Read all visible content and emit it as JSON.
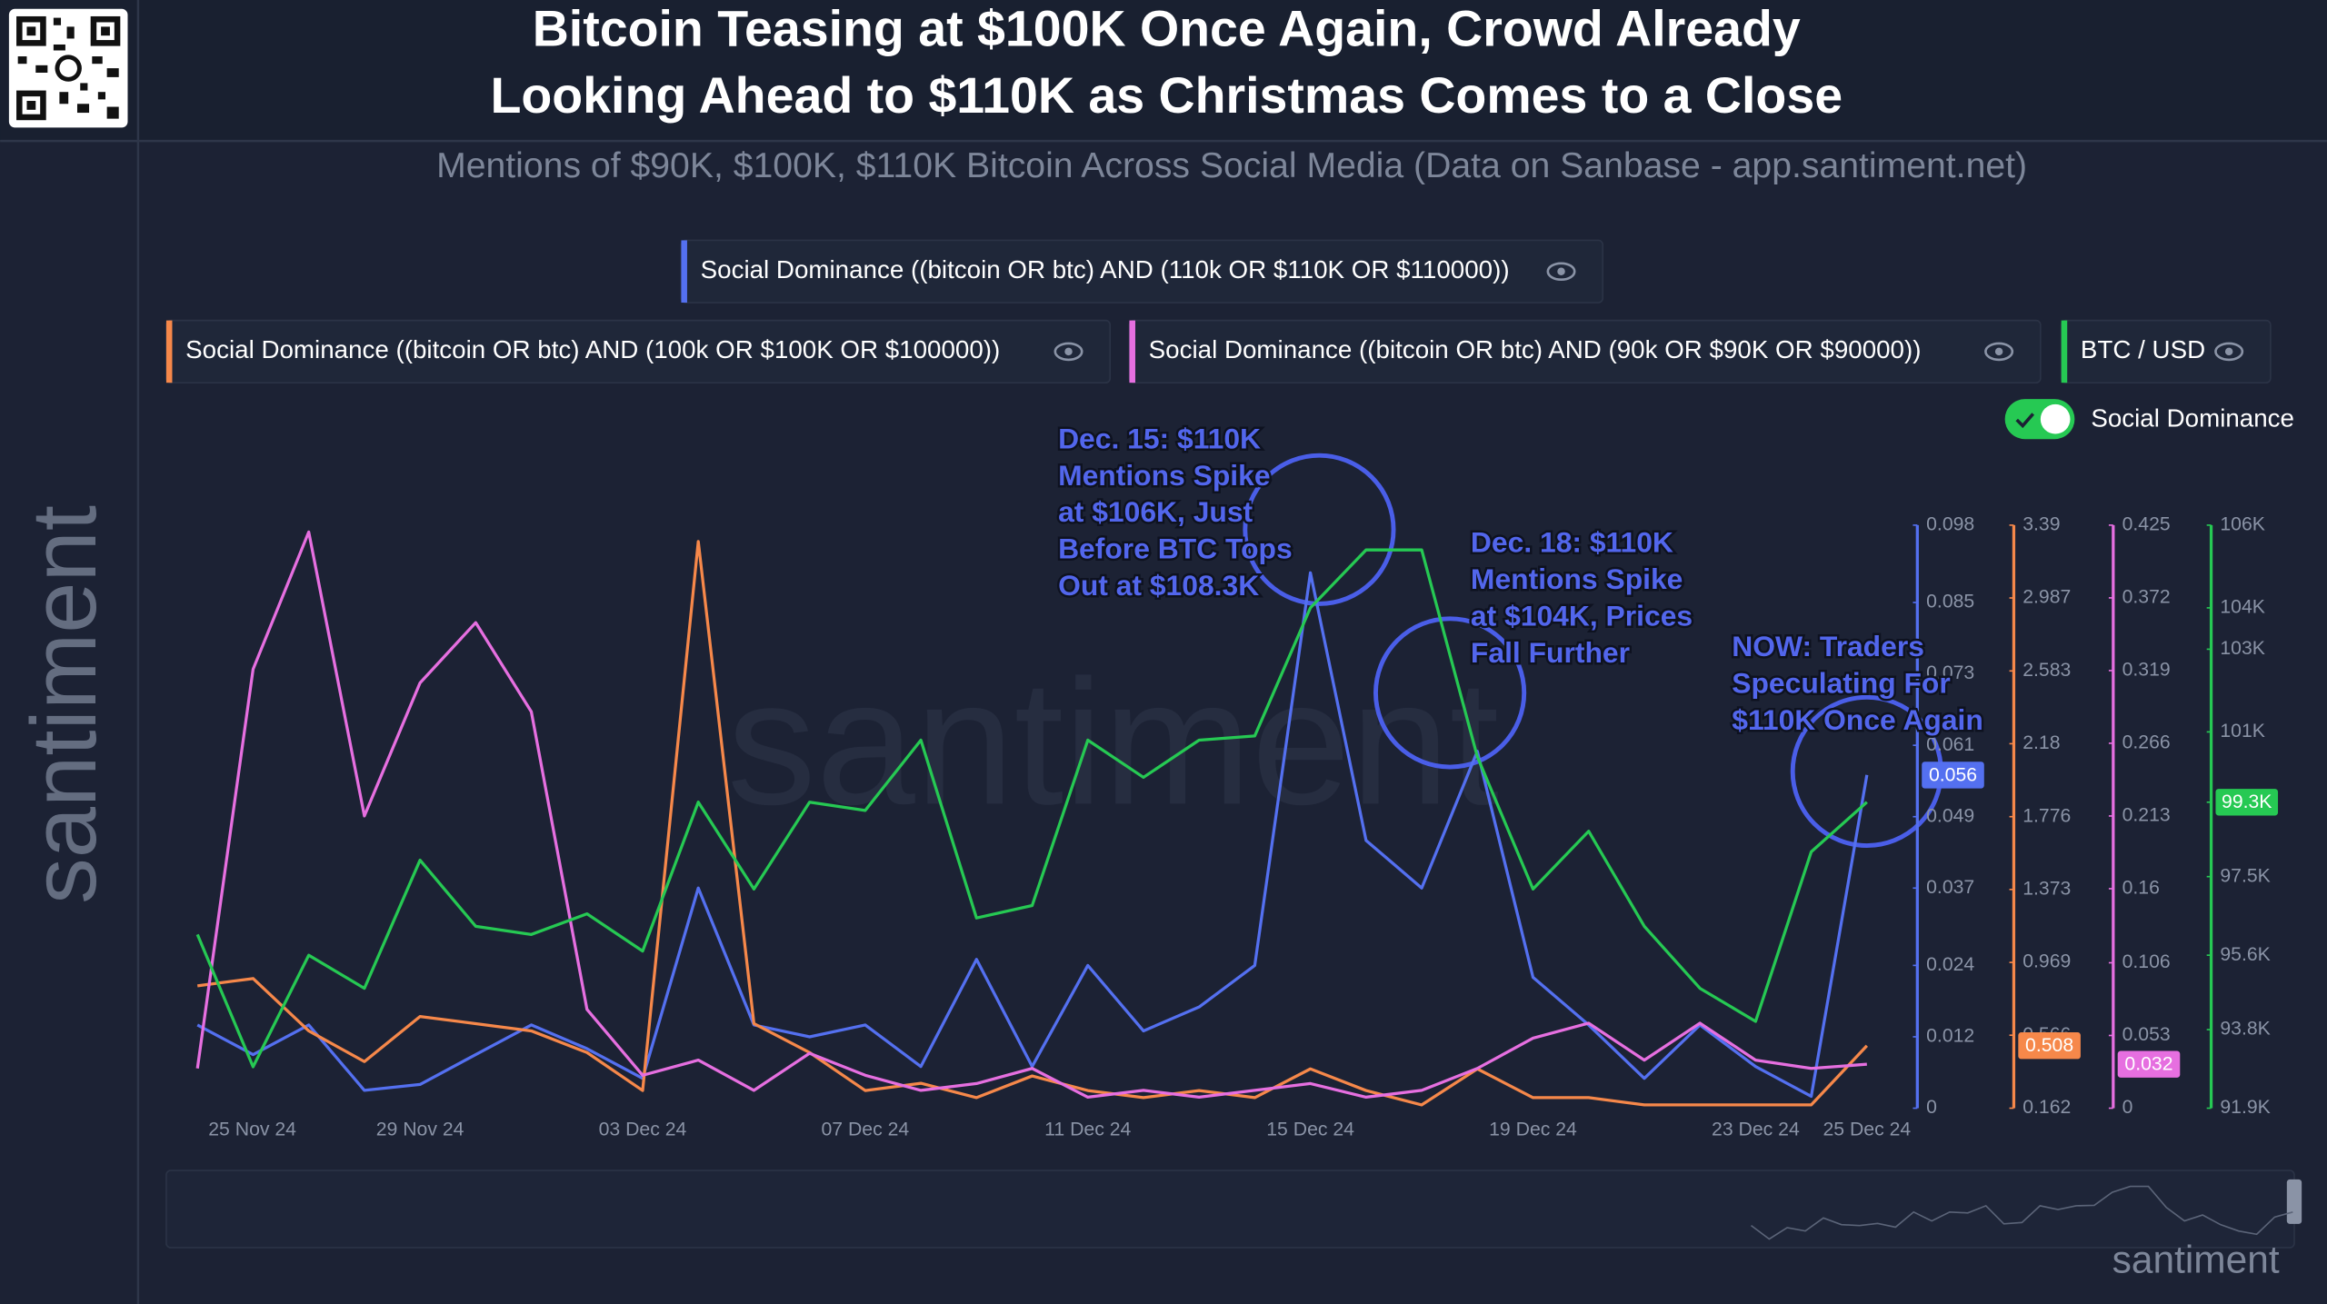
{
  "chart_data": {
    "type": "line",
    "title": [
      "Bitcoin Teasing at $100K Once Again, Crowd Already",
      "Looking Ahead to $110K as Christmas Comes to a Close"
    ],
    "subtitle": "Mentions of $90K, $100K, $110K Bitcoin Across Social Media (Data on Sanbase - app.santiment.net)",
    "toggle_label": "Social Dominance",
    "watermark": "santiment",
    "categories": [
      "25 Nov 24",
      null,
      null,
      null,
      "29 Nov 24",
      null,
      null,
      null,
      "03 Dec 24",
      null,
      null,
      null,
      "07 Dec 24",
      null,
      null,
      null,
      "11 Dec 24",
      null,
      null,
      null,
      "15 Dec 24",
      null,
      null,
      null,
      "19 Dec 24",
      null,
      null,
      null,
      "23 Dec 24",
      null,
      "25 Dec 24"
    ],
    "series": [
      {
        "name": "Social Dominance ((bitcoin OR btc) AND (110k OR $110K OR $110000))",
        "color": "#5470f0",
        "values": [
          0.014,
          0.009,
          0.014,
          0.003,
          0.004,
          0.009,
          0.014,
          0.01,
          0.005,
          0.037,
          0.014,
          0.012,
          0.014,
          0.007,
          0.025,
          0.007,
          0.024,
          0.013,
          0.017,
          0.024,
          0.09,
          0.045,
          0.037,
          0.06,
          0.022,
          0.014,
          0.005,
          0.014,
          0.007,
          0.002,
          0.056
        ],
        "value_labels": [
          null,
          null,
          null,
          null,
          null,
          null,
          null,
          null,
          null,
          null,
          null,
          null,
          null,
          null,
          null,
          null,
          null,
          null,
          null,
          null,
          null,
          null,
          null,
          null,
          null,
          null,
          null,
          null,
          null,
          null,
          "0.056"
        ],
        "ylim": [
          0,
          0.098
        ],
        "yticks": [
          0,
          0.012,
          0.024,
          0.037,
          0.049,
          0.061,
          0.073,
          0.085,
          0.098
        ]
      },
      {
        "name": "Social Dominance ((bitcoin OR btc) AND (100k OR $100K OR $100000))",
        "color": "#f6884a",
        "values": [
          0.84,
          0.88,
          0.59,
          0.42,
          0.67,
          0.63,
          0.59,
          0.47,
          0.26,
          3.3,
          0.63,
          0.47,
          0.26,
          0.3,
          0.22,
          0.34,
          0.26,
          0.22,
          0.26,
          0.22,
          0.38,
          0.26,
          0.18,
          0.38,
          0.22,
          0.22,
          0.18,
          0.18,
          0.18,
          0.18,
          0.508
        ],
        "value_labels": [
          null,
          null,
          null,
          null,
          null,
          null,
          null,
          null,
          null,
          null,
          null,
          null,
          null,
          null,
          null,
          null,
          null,
          null,
          null,
          null,
          null,
          null,
          null,
          null,
          null,
          null,
          null,
          null,
          null,
          null,
          "0.508"
        ],
        "ylim": [
          0.162,
          3.39
        ],
        "yticks": [
          0.162,
          0.566,
          0.969,
          1.373,
          1.776,
          2.18,
          2.583,
          2.987,
          3.39
        ]
      },
      {
        "name": "Social Dominance ((bitcoin OR btc) AND (90k OR $90K OR $90000))",
        "color": "#e66fe0",
        "values": [
          0.029,
          0.32,
          0.42,
          0.213,
          0.31,
          0.354,
          0.289,
          0.072,
          0.024,
          0.035,
          0.013,
          0.04,
          0.024,
          0.013,
          0.018,
          0.029,
          0.008,
          0.013,
          0.008,
          0.013,
          0.018,
          0.008,
          0.013,
          0.029,
          0.051,
          0.062,
          0.035,
          0.062,
          0.035,
          0.029,
          0.032
        ],
        "value_labels": [
          null,
          null,
          null,
          null,
          null,
          null,
          null,
          null,
          null,
          null,
          null,
          null,
          null,
          null,
          null,
          null,
          null,
          null,
          null,
          null,
          null,
          null,
          null,
          null,
          null,
          null,
          null,
          null,
          null,
          null,
          "0.032"
        ],
        "ylim": [
          0,
          0.425
        ],
        "yticks": [
          0,
          0.053,
          0.106,
          0.16,
          0.213,
          0.266,
          0.319,
          0.372,
          0.425
        ]
      },
      {
        "name": "BTC / USD",
        "color": "#26c953",
        "values": [
          96100,
          92900,
          95600,
          94800,
          97900,
          96300,
          96100,
          96600,
          95700,
          99300,
          97200,
          99300,
          99100,
          100800,
          96500,
          96800,
          100800,
          99900,
          100800,
          100900,
          104000,
          105400,
          105400,
          100400,
          97200,
          98600,
          96300,
          94800,
          94000,
          98100,
          99300
        ],
        "value_labels": [
          null,
          null,
          null,
          null,
          null,
          null,
          null,
          null,
          null,
          null,
          null,
          null,
          null,
          null,
          null,
          null,
          null,
          null,
          null,
          null,
          null,
          null,
          null,
          null,
          null,
          null,
          null,
          null,
          null,
          null,
          "99.3K"
        ],
        "ylim": [
          91900,
          106000
        ],
        "yticks": [
          {
            "value": 91900,
            "label": "91.9K"
          },
          {
            "value": 93800,
            "label": "93.8K"
          },
          {
            "value": 95600,
            "label": "95.6K"
          },
          {
            "value": 97500,
            "label": "97.5K"
          },
          {
            "value": 99300,
            "label": "99.3K"
          },
          {
            "value": 101000,
            "label": "101K"
          },
          {
            "value": 103000,
            "label": "103K"
          },
          {
            "value": 104000,
            "label": "104K"
          },
          {
            "value": 106000,
            "label": "106K"
          }
        ]
      }
    ],
    "annotations": [
      [
        "Dec. 15: $110K",
        "Mentions Spike",
        "at $106K, Just",
        "Before BTC Tops",
        "Out at $108.3K"
      ],
      [
        "Dec. 18: $110K",
        "Mentions Spike",
        "at $104K, Prices",
        "Fall Further"
      ],
      [
        "NOW: Traders",
        "Speculating For",
        "$110K Once Again"
      ]
    ]
  }
}
